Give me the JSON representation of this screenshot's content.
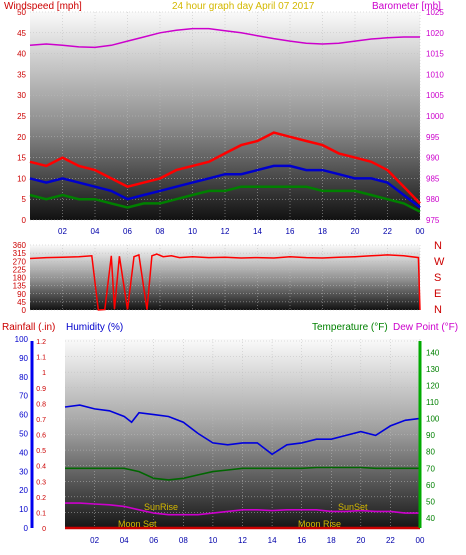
{
  "chart_data": [
    {
      "id": "wind_baro",
      "type": "line",
      "title": "24 hour graph day   April 07 2017",
      "left_axis_label": "Windspeed [mph]",
      "right_axis_label": "Barometer [mb]",
      "x_ticks": [
        "02",
        "04",
        "06",
        "08",
        "10",
        "12",
        "14",
        "16",
        "18",
        "20",
        "22",
        "00"
      ],
      "left_ticks": [
        0,
        5,
        10,
        15,
        20,
        25,
        30,
        35,
        40,
        45,
        50
      ],
      "right_ticks": [
        975,
        980,
        985,
        990,
        995,
        1000,
        1005,
        1010,
        1015,
        1020,
        1025
      ],
      "ylim_left": [
        0,
        50
      ],
      "ylim_right": [
        975,
        1025
      ],
      "series": [
        {
          "key": "gust",
          "color": "#ff0000",
          "x": [
            0,
            1,
            2,
            3,
            4,
            5,
            6,
            7,
            8,
            9,
            10,
            11,
            12,
            13,
            14,
            15,
            16,
            17,
            18,
            19,
            20,
            21,
            22,
            23,
            24
          ],
          "values": [
            14,
            13,
            15,
            13,
            12,
            10,
            8,
            9,
            10,
            12,
            13,
            14,
            16,
            18,
            19,
            21,
            20,
            19,
            18,
            16,
            15,
            14,
            12,
            8,
            4
          ]
        },
        {
          "key": "avg",
          "color": "#0000cc",
          "x": [
            0,
            1,
            2,
            3,
            4,
            5,
            6,
            7,
            8,
            9,
            10,
            11,
            12,
            13,
            14,
            15,
            16,
            17,
            18,
            19,
            20,
            21,
            22,
            23,
            24
          ],
          "values": [
            10,
            9,
            10,
            9,
            8,
            7,
            5,
            6,
            7,
            8,
            9,
            10,
            11,
            11,
            12,
            13,
            13,
            12,
            12,
            11,
            10,
            10,
            9,
            6,
            3
          ]
        },
        {
          "key": "min",
          "color": "#008000",
          "x": [
            0,
            1,
            2,
            3,
            4,
            5,
            6,
            7,
            8,
            9,
            10,
            11,
            12,
            13,
            14,
            15,
            16,
            17,
            18,
            19,
            20,
            21,
            22,
            23,
            24
          ],
          "values": [
            6,
            5,
            6,
            5,
            5,
            4,
            3,
            4,
            4,
            5,
            6,
            7,
            7,
            8,
            8,
            8,
            8,
            8,
            7,
            7,
            7,
            6,
            5,
            4,
            2
          ]
        },
        {
          "key": "baro",
          "color": "#cc00cc",
          "axis": "right",
          "x": [
            0,
            1,
            2,
            3,
            4,
            5,
            6,
            7,
            8,
            9,
            10,
            11,
            12,
            13,
            14,
            15,
            16,
            17,
            18,
            19,
            20,
            21,
            22,
            23,
            24
          ],
          "values": [
            1017,
            1017.3,
            1017,
            1016.6,
            1016.5,
            1017,
            1018,
            1019,
            1020,
            1020.6,
            1021,
            1021,
            1020.5,
            1020,
            1019.3,
            1018.6,
            1018,
            1017.5,
            1017.3,
            1017.5,
            1018,
            1018.5,
            1018.8,
            1019,
            1019
          ]
        }
      ]
    },
    {
      "id": "wind_dir",
      "type": "line",
      "left_ticks": [
        0,
        45,
        90,
        135,
        180,
        225,
        270,
        315,
        360
      ],
      "ylim": [
        0,
        360
      ],
      "compass_labels": [
        "N",
        "W",
        "S",
        "E",
        "N"
      ],
      "series": [
        {
          "key": "direction",
          "color": "#ff0000",
          "x": [
            0,
            1,
            2,
            3,
            3.8,
            4.2,
            4.6,
            5.0,
            5.2,
            5.5,
            6.0,
            6.4,
            6.7,
            7.2,
            7.5,
            7.8,
            8.2,
            8.7,
            9.2,
            10,
            11,
            12,
            13,
            14,
            15,
            16,
            17,
            18,
            19,
            20,
            21,
            22,
            23,
            23.9,
            24
          ],
          "values": [
            285,
            290,
            292,
            295,
            300,
            0,
            2,
            300,
            5,
            298,
            3,
            295,
            305,
            2,
            300,
            310,
            295,
            300,
            290,
            295,
            290,
            292,
            288,
            290,
            288,
            295,
            290,
            288,
            292,
            295,
            300,
            305,
            300,
            290,
            0
          ]
        }
      ]
    },
    {
      "id": "temp_hum_rain",
      "type": "line",
      "left_axis_label": "Rainfall (.in)",
      "mid_axis_label": "Humidity (%)",
      "right_axis_label": "Temperature (°F)",
      "dew_label": "Dew Point (°F)",
      "rain_ticks": [
        "0",
        "0.1",
        "0.2",
        "0.3",
        "0.4",
        "0.5",
        "0.6",
        "0.7",
        "0.8",
        "0.9",
        "1",
        "1.1",
        "1.2"
      ],
      "hum_ticks": [
        0,
        10,
        20,
        30,
        40,
        50,
        60,
        70,
        80,
        90,
        100
      ],
      "temp_ticks": [
        40,
        50,
        60,
        70,
        80,
        90,
        100,
        110,
        120,
        130,
        140
      ],
      "ylim_hum": [
        0,
        100
      ],
      "ylim_temp": [
        34,
        148
      ],
      "annotations": {
        "sunrise": "SunRise",
        "sunset": "SunSet",
        "moonset": "Moon Set",
        "moonrise": "Moon Rise"
      },
      "series": [
        {
          "key": "humidity",
          "color": "#0000dd",
          "x": [
            0,
            1,
            2,
            3,
            4,
            4.5,
            5,
            6,
            7,
            8,
            9,
            10,
            11,
            12,
            13,
            14,
            15,
            16,
            17,
            18,
            19,
            20,
            21,
            22,
            23,
            24
          ],
          "values": [
            64,
            65,
            63,
            62,
            59,
            56,
            61,
            60,
            59,
            56,
            50,
            45,
            44,
            45,
            45,
            39,
            44,
            45,
            47,
            47,
            49,
            51,
            49,
            54,
            57,
            58
          ]
        },
        {
          "key": "temperature",
          "color": "#cc00cc",
          "x": [
            0,
            1,
            2,
            3,
            4,
            5,
            6,
            7,
            8,
            9,
            10,
            11,
            12,
            13,
            14,
            15,
            16,
            17,
            18,
            19,
            20,
            21,
            22,
            23,
            24
          ],
          "values": [
            49,
            49,
            48.5,
            48,
            47,
            45,
            43,
            42,
            42,
            42,
            43,
            44,
            45,
            45,
            44.5,
            45,
            45,
            45,
            44,
            44,
            44.5,
            44,
            44,
            43,
            43
          ]
        },
        {
          "key": "dewpoint",
          "color": "#006600",
          "x": [
            0,
            1,
            2,
            3,
            4,
            5,
            6,
            7,
            8,
            9,
            10,
            11,
            12,
            13,
            14,
            15,
            16,
            17,
            18,
            19,
            20,
            21,
            22,
            23,
            24
          ],
          "values": [
            70,
            70,
            70,
            70,
            70,
            68,
            64,
            63,
            64,
            66,
            68,
            69,
            70,
            70,
            70,
            70,
            70,
            70.5,
            70.5,
            70.5,
            70.5,
            70,
            70,
            70,
            70
          ]
        },
        {
          "key": "rainfall",
          "color": "#cc0000",
          "x": [
            0,
            24
          ],
          "values": [
            0,
            0
          ]
        }
      ]
    }
  ]
}
